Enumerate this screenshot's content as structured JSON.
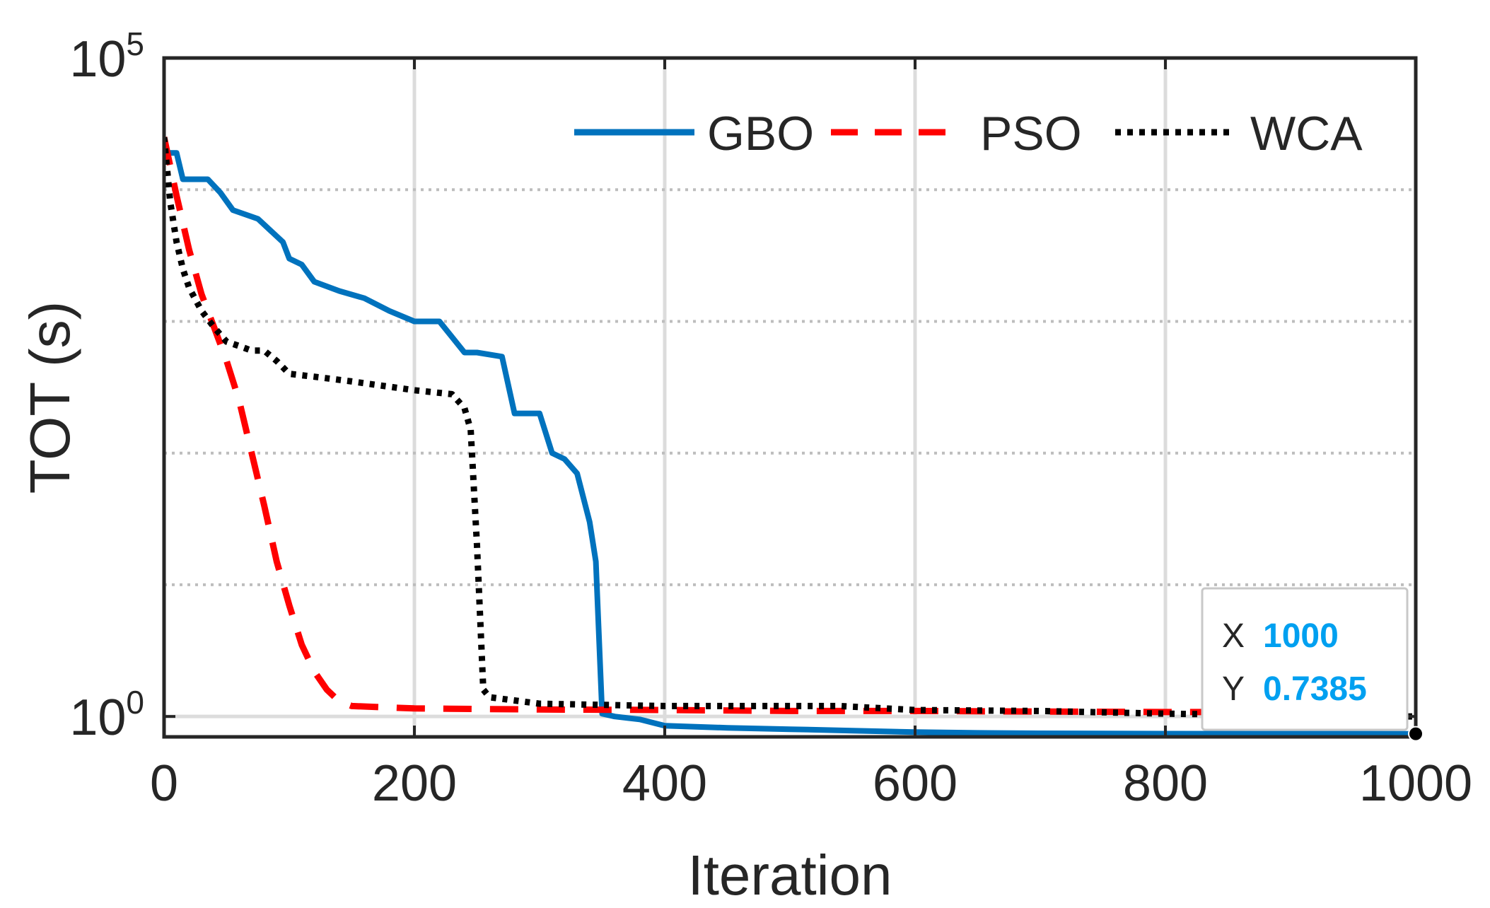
{
  "chart_data": {
    "type": "line",
    "xlabel": "Iteration",
    "ylabel": "TOT (s)",
    "yscale": "log",
    "xlim": [
      0,
      1000
    ],
    "ylim": [
      0.7,
      100000
    ],
    "x_ticks": [
      0,
      200,
      400,
      600,
      800,
      1000
    ],
    "x_tick_labels": [
      "0",
      "200",
      "400",
      "600",
      "800",
      "1000"
    ],
    "y_ticks": [
      1,
      100000
    ],
    "y_tick_labels": [
      {
        "base": "10",
        "exp": "0"
      },
      {
        "base": "10",
        "exp": "5"
      }
    ],
    "y_minor_grid": [
      10,
      100,
      1000,
      10000
    ],
    "grid": true,
    "legend_position": "top-right",
    "series": [
      {
        "name": "GBO",
        "color": "#0072BD",
        "style": "solid",
        "x": [
          0,
          10,
          15,
          35,
          45,
          55,
          75,
          95,
          100,
          110,
          120,
          140,
          160,
          180,
          200,
          220,
          240,
          250,
          270,
          280,
          300,
          310,
          320,
          330,
          340,
          345,
          350,
          360,
          380,
          400,
          450,
          500,
          550,
          600,
          650,
          700,
          800,
          900,
          1000
        ],
        "y": [
          19000,
          19000,
          12000,
          12000,
          9500,
          7000,
          6000,
          4000,
          3000,
          2700,
          2000,
          1700,
          1500,
          1200,
          1000,
          1000,
          580,
          580,
          540,
          200,
          200,
          100,
          90,
          70,
          30,
          15,
          1.05,
          1.0,
          0.95,
          0.85,
          0.82,
          0.8,
          0.78,
          0.76,
          0.75,
          0.745,
          0.74,
          0.739,
          0.7385
        ]
      },
      {
        "name": "PSO",
        "color": "#FF0000",
        "style": "dashed",
        "x": [
          0,
          10,
          20,
          30,
          40,
          50,
          60,
          70,
          80,
          90,
          100,
          110,
          120,
          130,
          140,
          150,
          200,
          300,
          400,
          500,
          600,
          700,
          800,
          900,
          1000
        ],
        "y": [
          25000,
          9000,
          3500,
          1600,
          900,
          500,
          250,
          100,
          40,
          15,
          7,
          3.5,
          2.2,
          1.6,
          1.3,
          1.2,
          1.15,
          1.13,
          1.12,
          1.1,
          1.1,
          1.09,
          1.08,
          1.08,
          1.08
        ]
      },
      {
        "name": "WCA",
        "color": "#000000",
        "style": "dotted",
        "x": [
          0,
          5,
          10,
          15,
          20,
          30,
          40,
          50,
          60,
          70,
          80,
          90,
          100,
          120,
          150,
          200,
          230,
          240,
          245,
          250,
          255,
          260,
          300,
          400,
          500,
          540,
          600,
          700,
          800,
          900,
          1000
        ],
        "y": [
          25000,
          8000,
          4000,
          2500,
          1800,
          1200,
          900,
          700,
          650,
          600,
          600,
          500,
          400,
          380,
          350,
          300,
          280,
          220,
          150,
          20,
          1.6,
          1.4,
          1.25,
          1.2,
          1.2,
          1.2,
          1.12,
          1.1,
          1.05,
          1.02,
          1.0
        ]
      }
    ],
    "datatip": {
      "x_label": "X",
      "x_value": "1000",
      "y_label": "Y",
      "y_value": "0.7385",
      "x": 1000,
      "y": 0.7385,
      "value_color": "#00A0F0"
    }
  }
}
